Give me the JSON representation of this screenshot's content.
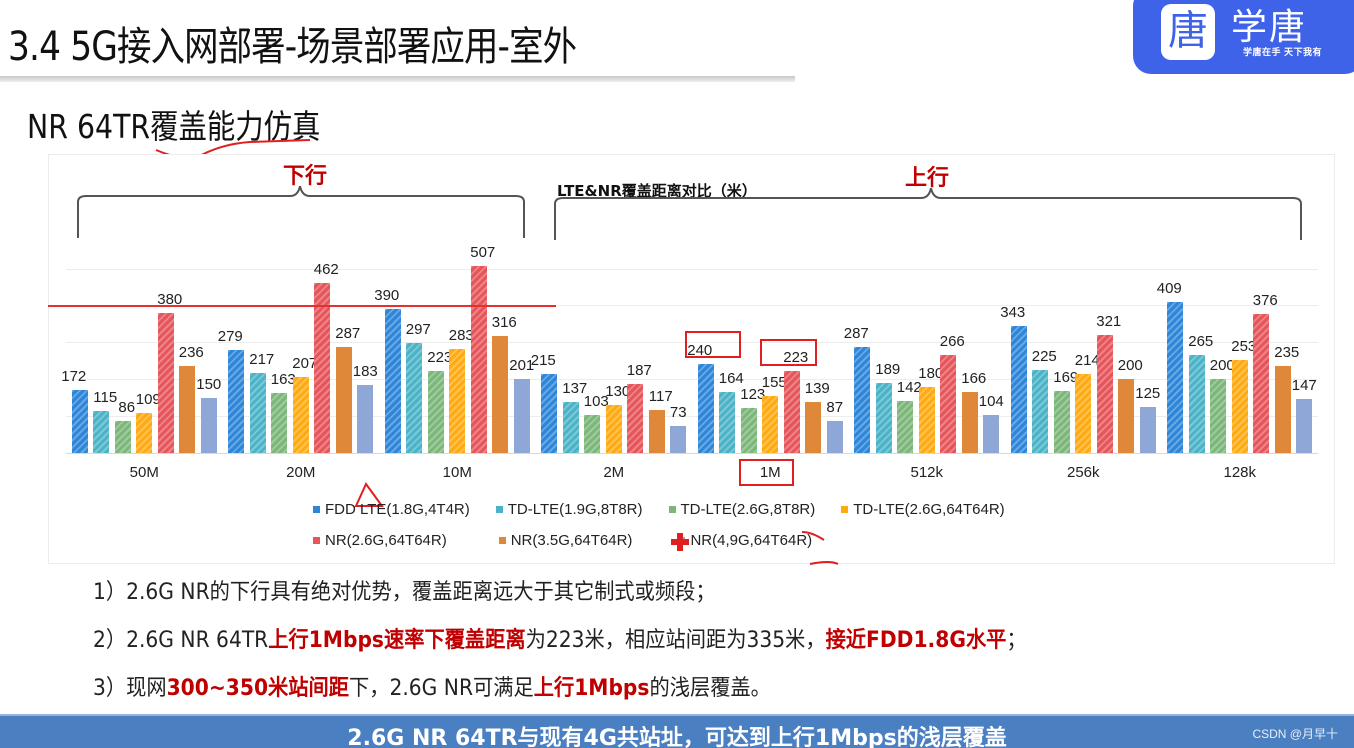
{
  "slide": {
    "title": "3.4 5G接入网部署-场景部署应用-室外",
    "subtitle": "NR 64TR覆盖能力仿真"
  },
  "logo": {
    "icon_glyph": "唐",
    "name": "学唐",
    "slogan": "学唐在手 天下我有",
    "color": "#3f63e8"
  },
  "annotations": {
    "downlink_label": "下行",
    "uplink_label": "上行"
  },
  "chart_data": {
    "type": "bar",
    "title": "LTE&NR覆盖距离对比（米）",
    "xlabel": "",
    "ylabel": "",
    "ylim": [
      0,
      550
    ],
    "grid": true,
    "legend_position": "bottom",
    "groups": [
      {
        "name": "下行",
        "categories": [
          "50M",
          "20M",
          "10M"
        ]
      },
      {
        "name": "上行",
        "categories": [
          "2M",
          "1M",
          "512k",
          "256k",
          "128k"
        ]
      }
    ],
    "categories": [
      "50M",
      "20M",
      "10M",
      "2M",
      "1M",
      "512k",
      "256k",
      "128k"
    ],
    "series": [
      {
        "name": "FDD LTE(1.8G,4T4R)",
        "color": "#2e86d9",
        "values": [
          172,
          279,
          390,
          215,
          240,
          287,
          343,
          409
        ]
      },
      {
        "name": "TD-LTE(1.9G,8T8R)",
        "color": "#4bb3c8",
        "values": [
          115,
          217,
          297,
          137,
          164,
          189,
          225,
          265
        ]
      },
      {
        "name": "TD-LTE(2.6G,8T8R)",
        "color": "#7cb77a",
        "values": [
          86,
          163,
          223,
          103,
          123,
          142,
          169,
          200
        ]
      },
      {
        "name": "TD-LTE(2.6G,64T64R)",
        "color": "#ffaa11",
        "values": [
          109,
          207,
          283,
          130,
          155,
          180,
          214,
          253
        ]
      },
      {
        "name": "NR(2.6G,64T64R)",
        "color": "#e5555a",
        "values": [
          380,
          462,
          507,
          187,
          223,
          266,
          321,
          376
        ]
      },
      {
        "name": "NR(3.5G,64T64R)",
        "color": "#e0883a",
        "values": [
          236,
          287,
          316,
          117,
          139,
          166,
          200,
          235
        ]
      },
      {
        "name": "NR(4,9G,64T64R)",
        "color": "#8fa7d6",
        "values": [
          150,
          183,
          201,
          73,
          87,
          104,
          125,
          147
        ]
      }
    ],
    "highlighted": [
      "240",
      "223",
      "1M"
    ]
  },
  "notes": [
    {
      "parts": [
        {
          "t": "1）2.6G NR的下行具有绝对优势，覆盖距离远大于其它制式或频段；",
          "hl": false
        }
      ]
    },
    {
      "parts": [
        {
          "t": "2）2.6G NR 64TR",
          "hl": false
        },
        {
          "t": "上行1Mbps速率下覆盖距离",
          "hl": true
        },
        {
          "t": "为223米，相应站间距为335米，",
          "hl": false
        },
        {
          "t": "接近FDD1.8G水平",
          "hl": true
        },
        {
          "t": "；",
          "hl": false
        }
      ]
    },
    {
      "parts": [
        {
          "t": "3）现网",
          "hl": false
        },
        {
          "t": "300~350米站间距",
          "hl": true
        },
        {
          "t": "下，2.6G NR可满足",
          "hl": false
        },
        {
          "t": "上行1Mbps",
          "hl": true
        },
        {
          "t": "的浅层覆盖。",
          "hl": false
        }
      ]
    }
  ],
  "footer": {
    "text": "2.6G NR 64TR与现有4G共站址，可达到上行1Mbps的浅层覆盖",
    "watermark": "CSDN @月早十"
  }
}
